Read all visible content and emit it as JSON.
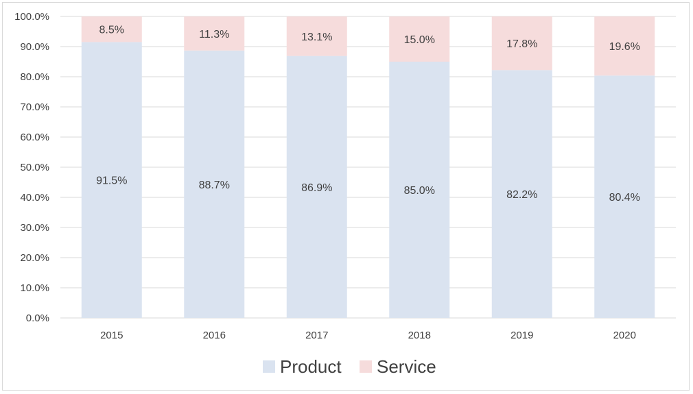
{
  "chart_data": {
    "type": "bar",
    "stacked": true,
    "categories": [
      "2015",
      "2016",
      "2017",
      "2018",
      "2019",
      "2020"
    ],
    "series": [
      {
        "name": "Product",
        "values": [
          91.5,
          88.7,
          86.9,
          85.0,
          82.2,
          80.4
        ],
        "labels": [
          "91.5%",
          "88.7%",
          "86.9%",
          "85.0%",
          "82.2%",
          "80.4%"
        ],
        "color": "#dae3f0"
      },
      {
        "name": "Service",
        "values": [
          8.5,
          11.3,
          13.1,
          15.0,
          17.8,
          19.6
        ],
        "labels": [
          "8.5%",
          "11.3%",
          "13.1%",
          "15.0%",
          "17.8%",
          "19.6%"
        ],
        "color": "#f6dcdc"
      }
    ],
    "y_ticks": [
      "0.0%",
      "10.0%",
      "20.0%",
      "30.0%",
      "40.0%",
      "50.0%",
      "60.0%",
      "70.0%",
      "80.0%",
      "90.0%",
      "100.0%"
    ],
    "ylim": [
      0,
      100
    ],
    "grid": true,
    "legend_position": "bottom",
    "gridline_color": "#d9d9d9"
  }
}
